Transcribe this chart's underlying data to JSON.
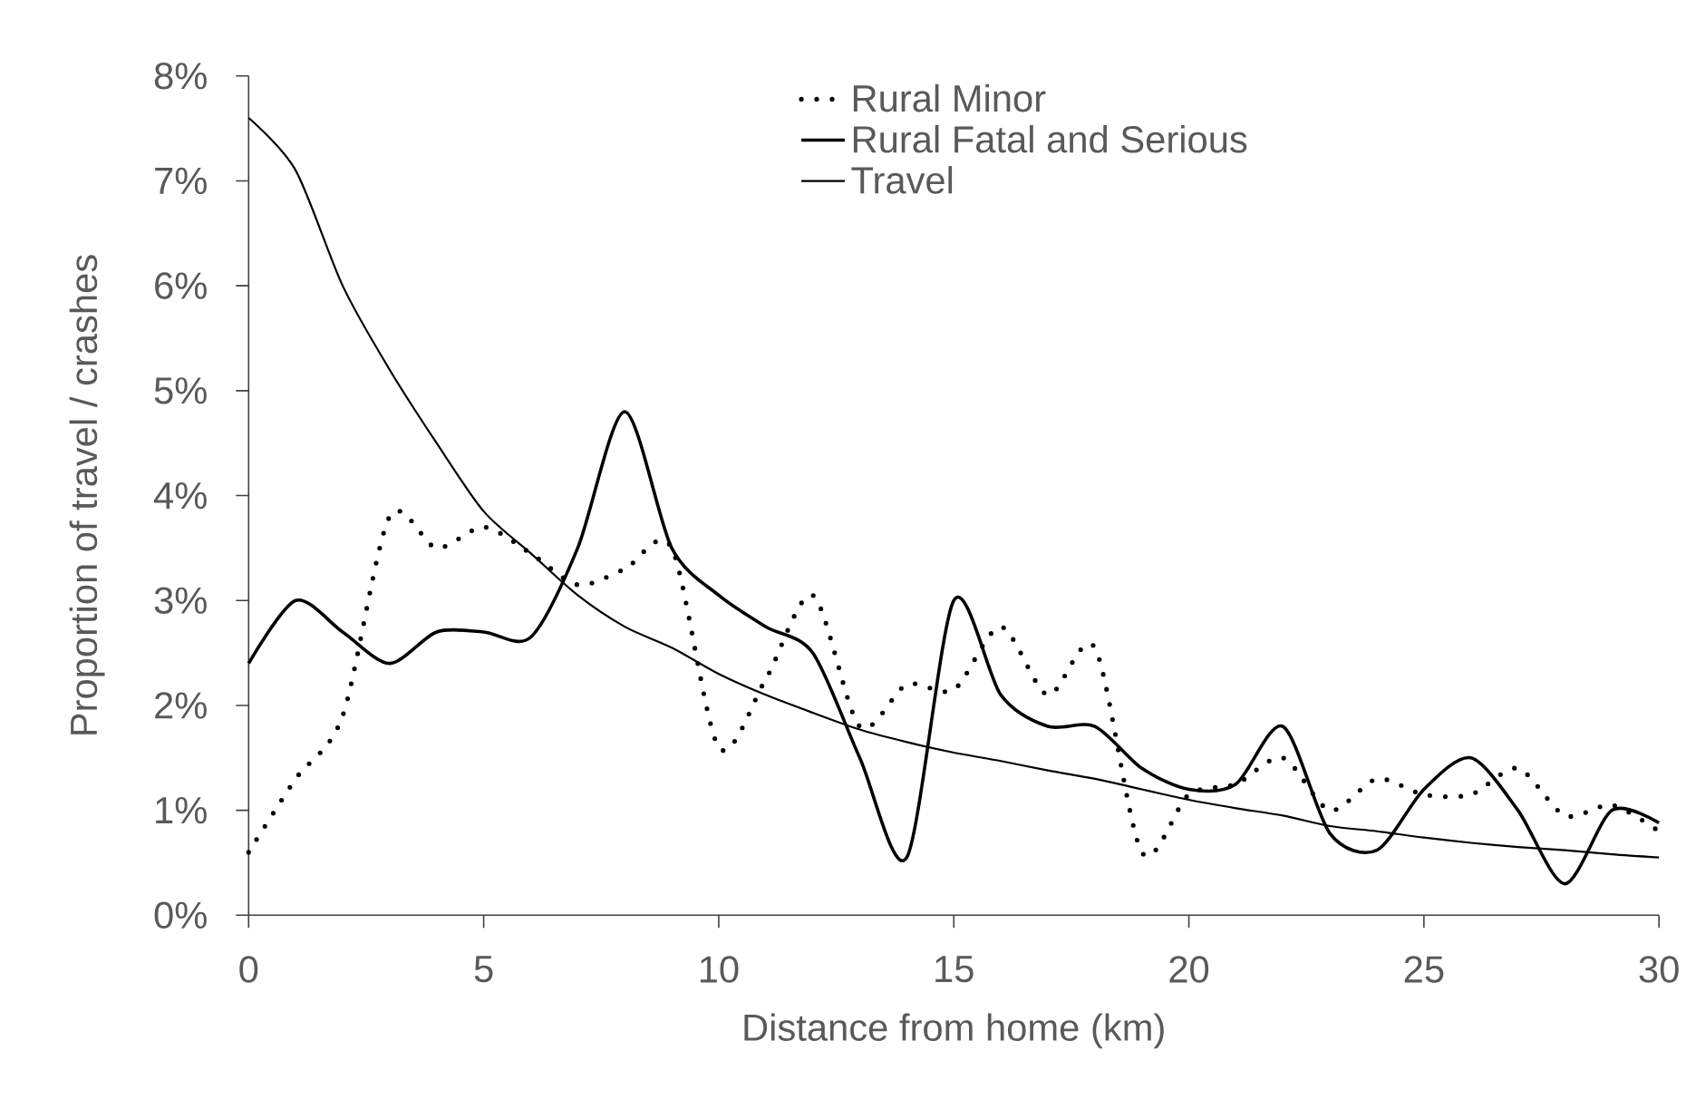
{
  "chart_data": {
    "type": "line",
    "xlabel": "Distance from home (km)",
    "ylabel": "Proportion of travel / crashes",
    "x": [
      0,
      1,
      2,
      3,
      4,
      5,
      6,
      7,
      8,
      9,
      10,
      11,
      12,
      13,
      14,
      15,
      16,
      17,
      18,
      19,
      20,
      21,
      22,
      23,
      24,
      25,
      26,
      27,
      28,
      29,
      30
    ],
    "series": [
      {
        "name": "Rural Minor",
        "color": "#000000",
        "line_style": "dotted",
        "values": [
          0.6,
          1.3,
          1.9,
          3.8,
          3.5,
          3.7,
          3.45,
          3.15,
          3.3,
          3.5,
          1.6,
          2.25,
          3.05,
          1.8,
          2.2,
          2.15,
          2.75,
          2.1,
          2.55,
          0.6,
          1.15,
          1.25,
          1.5,
          1.0,
          1.3,
          1.15,
          1.15,
          1.4,
          0.95,
          1.05,
          0.8
        ]
      },
      {
        "name": "Rural Fatal and Serious",
        "color": "#000000",
        "line_style": "solid",
        "values": [
          2.4,
          3.0,
          2.7,
          2.4,
          2.7,
          2.7,
          2.65,
          3.5,
          4.8,
          3.5,
          3.05,
          2.75,
          2.5,
          1.5,
          0.55,
          3.0,
          2.1,
          1.8,
          1.8,
          1.4,
          1.2,
          1.25,
          1.8,
          0.78,
          0.62,
          1.2,
          1.5,
          1.0,
          0.3,
          1.0,
          0.88
        ]
      },
      {
        "name": "Travel",
        "color": "#000000",
        "line_style": "solid",
        "values": [
          7.6,
          7.1,
          6.0,
          5.2,
          4.5,
          3.85,
          3.45,
          3.05,
          2.75,
          2.55,
          2.3,
          2.1,
          1.93,
          1.77,
          1.65,
          1.55,
          1.47,
          1.38,
          1.3,
          1.2,
          1.1,
          1.02,
          0.95,
          0.85,
          0.8,
          0.74,
          0.69,
          0.65,
          0.62,
          0.58,
          0.55
        ]
      }
    ],
    "xlim": [
      0,
      30
    ],
    "xticks": [
      0,
      5,
      10,
      15,
      20,
      25,
      30
    ],
    "ylim": [
      0,
      8
    ],
    "yticks": [
      {
        "value": 0,
        "label": "0%"
      },
      {
        "value": 1,
        "label": "1%"
      },
      {
        "value": 2,
        "label": "2%"
      },
      {
        "value": 3,
        "label": "3%"
      },
      {
        "value": 4,
        "label": "4%"
      },
      {
        "value": 5,
        "label": "5%"
      },
      {
        "value": 6,
        "label": "6%"
      },
      {
        "value": 7,
        "label": "7%"
      },
      {
        "value": 8,
        "label": "8%"
      }
    ],
    "legend": "top",
    "grid": false,
    "marker": "none"
  }
}
